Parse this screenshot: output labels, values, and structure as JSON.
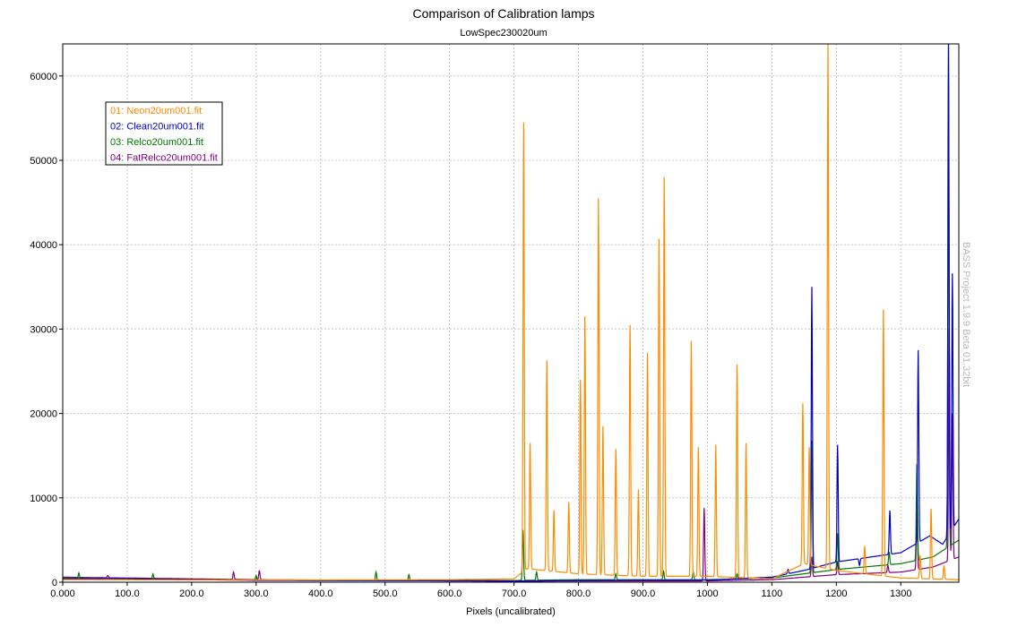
{
  "colors": {
    "neon": "#ff8c00",
    "clean": "#0000c8",
    "relco": "#007800",
    "fatrelco": "#800080",
    "grid": "#c8c8c8"
  },
  "watermark": "BASS Project 1.9.9 Beta 01.32bit",
  "chart_data": {
    "type": "line",
    "title": "Comparison of Calibration lamps",
    "subtitle": "LowSpec230020um",
    "xlabel": "Pixels (uncalibrated)",
    "ylabel": "",
    "xlim": [
      0,
      1390
    ],
    "ylim": [
      0,
      63800
    ],
    "grid": true,
    "legend_position": "top-left",
    "x_ticks": [
      0,
      100,
      200,
      300,
      400,
      500,
      600,
      700,
      800,
      900,
      1000,
      1100,
      1200,
      1300
    ],
    "x_tick_labels": [
      "0.000",
      "100.0",
      "200.0",
      "300.0",
      "400.0",
      "500.0",
      "600.0",
      "700.0",
      "800.0",
      "900.0",
      "1000",
      "1100",
      "1200",
      "1300"
    ],
    "y_ticks": [
      0,
      10000,
      20000,
      30000,
      40000,
      50000,
      60000
    ],
    "y_tick_labels": [
      "0",
      "10000",
      "20000",
      "30000",
      "40000",
      "50000",
      "60000"
    ],
    "series": [
      {
        "name": "01: Neon20um001.fit",
        "color_key": "neon",
        "baseline": [
          [
            0,
            300
          ],
          [
            300,
            250
          ],
          [
            600,
            300
          ],
          [
            700,
            400
          ],
          [
            720,
            1600
          ],
          [
            800,
            1000
          ],
          [
            900,
            700
          ],
          [
            1000,
            700
          ],
          [
            1100,
            400
          ],
          [
            1150,
            2200
          ],
          [
            1200,
            1400
          ],
          [
            1300,
            500
          ],
          [
            1390,
            300
          ]
        ],
        "peaks": [
          [
            715,
            54500
          ],
          [
            725,
            16500
          ],
          [
            751,
            26300
          ],
          [
            762,
            8500
          ],
          [
            785,
            9500
          ],
          [
            803,
            24000
          ],
          [
            810,
            31500
          ],
          [
            831,
            45500
          ],
          [
            838,
            18500
          ],
          [
            858,
            15800
          ],
          [
            880,
            30500
          ],
          [
            893,
            11000
          ],
          [
            907,
            27200
          ],
          [
            925,
            40700
          ],
          [
            933,
            48000
          ],
          [
            975,
            28600
          ],
          [
            986,
            16000
          ],
          [
            1013,
            16300
          ],
          [
            1046,
            25800
          ],
          [
            1060,
            16500
          ],
          [
            1148,
            21200
          ],
          [
            1158,
            16000
          ],
          [
            1187,
            63800
          ],
          [
            1244,
            4300
          ],
          [
            1273,
            32300
          ],
          [
            1330,
            3200
          ],
          [
            1347,
            8700
          ],
          [
            1367,
            2000
          ]
        ]
      },
      {
        "name": "02: Clean20um001.fit",
        "color_key": "clean",
        "baseline": [
          [
            0,
            400
          ],
          [
            100,
            450
          ],
          [
            300,
            200
          ],
          [
            600,
            200
          ],
          [
            700,
            150
          ],
          [
            800,
            200
          ],
          [
            900,
            250
          ],
          [
            1000,
            250
          ],
          [
            1100,
            600
          ],
          [
            1150,
            1400
          ],
          [
            1200,
            2400
          ],
          [
            1300,
            3500
          ],
          [
            1345,
            5500
          ],
          [
            1365,
            4500
          ],
          [
            1390,
            7500
          ]
        ],
        "peaks": [
          [
            1125,
            1500
          ],
          [
            1162,
            35000
          ],
          [
            1202,
            16300
          ],
          [
            1236,
            2000
          ],
          [
            1283,
            8500
          ],
          [
            1327,
            27500
          ],
          [
            1374,
            64000
          ],
          [
            1380,
            36600
          ]
        ]
      },
      {
        "name": "03: Relco20um001.fit",
        "color_key": "relco",
        "baseline": [
          [
            0,
            500
          ],
          [
            200,
            300
          ],
          [
            400,
            200
          ],
          [
            600,
            200
          ],
          [
            700,
            200
          ],
          [
            800,
            300
          ],
          [
            900,
            300
          ],
          [
            1000,
            300
          ],
          [
            1100,
            500
          ],
          [
            1200,
            1500
          ],
          [
            1300,
            2200
          ],
          [
            1350,
            3000
          ],
          [
            1390,
            5000
          ]
        ],
        "peaks": [
          [
            25,
            1100
          ],
          [
            140,
            1000
          ],
          [
            300,
            800
          ],
          [
            486,
            1200
          ],
          [
            537,
            900
          ],
          [
            714,
            6200
          ],
          [
            735,
            1200
          ],
          [
            858,
            1000
          ],
          [
            932,
            1300
          ],
          [
            978,
            1200
          ],
          [
            1046,
            1000
          ],
          [
            1162,
            16800
          ],
          [
            1202,
            5800
          ],
          [
            1282,
            3600
          ],
          [
            1325,
            14000
          ],
          [
            1374,
            64000
          ]
        ]
      },
      {
        "name": "04: FatRelco20um001.fit",
        "color_key": "fatrelco",
        "baseline": [
          [
            0,
            600
          ],
          [
            100,
            500
          ],
          [
            300,
            300
          ],
          [
            500,
            200
          ],
          [
            700,
            100
          ],
          [
            800,
            150
          ],
          [
            900,
            150
          ],
          [
            1000,
            150
          ],
          [
            1100,
            300
          ],
          [
            1200,
            900
          ],
          [
            1300,
            1200
          ],
          [
            1350,
            1800
          ],
          [
            1390,
            3000
          ]
        ],
        "peaks": [
          [
            70,
            800
          ],
          [
            265,
            1200
          ],
          [
            305,
            1400
          ],
          [
            995,
            8800
          ],
          [
            1162,
            3000
          ],
          [
            1202,
            2500
          ],
          [
            1280,
            2000
          ],
          [
            1325,
            9000
          ],
          [
            1375,
            30000
          ],
          [
            1380,
            20000
          ]
        ]
      }
    ]
  }
}
